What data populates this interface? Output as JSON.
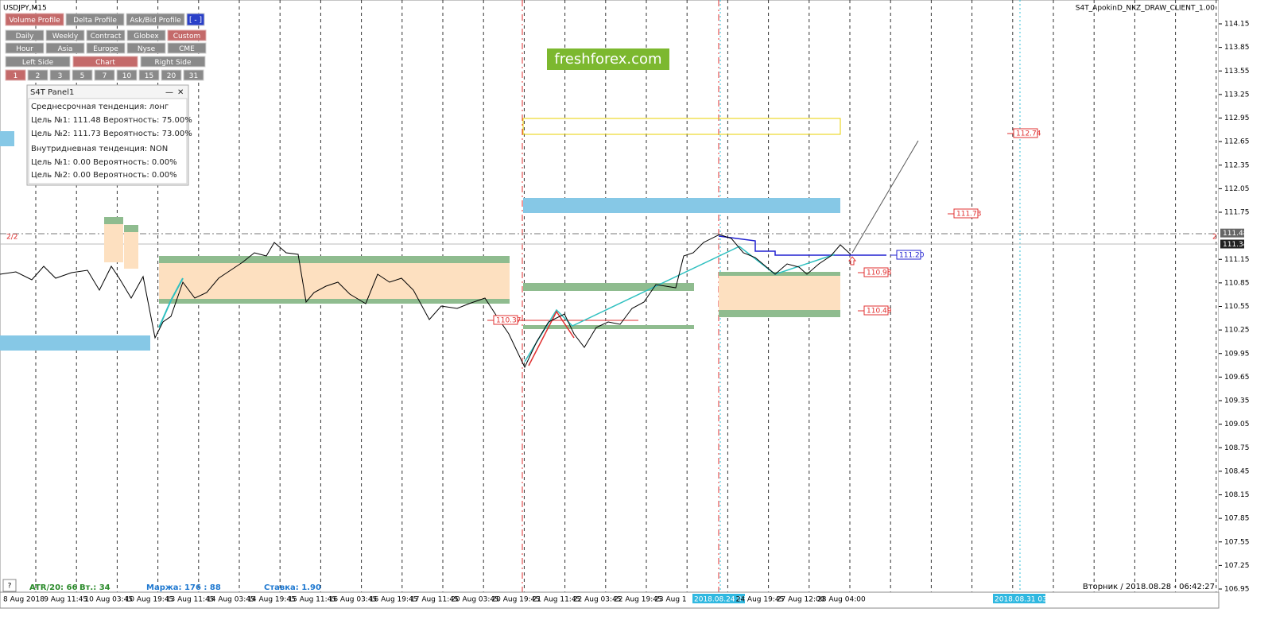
{
  "header": {
    "symbol": "USDJPY,M15",
    "indicator": "S4T_ApokinD_NKZ_DRAW_CLIENT_1.00"
  },
  "toolbar": {
    "profiles": [
      "Volume Profile",
      "Delta Profile",
      "Ask/Bid Profile"
    ],
    "toggle": "[ - ]",
    "periods": [
      "Daily",
      "Weekly",
      "Contract",
      "Globex",
      "Custom"
    ],
    "sessions": [
      "Hour",
      "Asia",
      "Europe",
      "Nyse",
      "CME"
    ],
    "sides": [
      "Left Side",
      "Chart",
      "Right Side"
    ],
    "numbers": [
      "1",
      "2",
      "3",
      "5",
      "7",
      "10",
      "15",
      "20",
      "31"
    ]
  },
  "panel": {
    "title": "S4T Panel1",
    "lines": [
      "Среднесрочная тенденция: лонг",
      "Цель №1: 111.48 Вероятность: 75.00%",
      "Цель №2: 111.73 Вероятность: 73.00%",
      "Внутридневная тенденция: NON",
      "Цель №1: 0.00 Вероятность: 0.00%",
      "Цель №2: 0.00 Вероятность: 0.00%"
    ]
  },
  "watermark": "freshforex.com",
  "price_axis": {
    "ticks": [
      114.15,
      113.85,
      113.55,
      113.25,
      112.95,
      112.65,
      112.35,
      112.05,
      111.75,
      111.15,
      110.85,
      110.55,
      110.25,
      109.95,
      109.65,
      109.35,
      109.05,
      108.75,
      108.45,
      108.15,
      107.85,
      107.55,
      107.25,
      106.95
    ],
    "current": [
      111.48,
      111.34
    ]
  },
  "levels": [
    "112.74",
    "111.73",
    "111.20",
    "110.98",
    "110.49",
    "110.37"
  ],
  "markers": {
    "left": "2/2",
    "right": "2"
  },
  "time_axis": {
    "labels": [
      "8 Aug 2018",
      "9 Aug 11:45",
      "10 Aug 03:45",
      "10 Aug 19:45",
      "13 Aug 11:45",
      "14 Aug 03:45",
      "14 Aug 19:45",
      "15 Aug 11:45",
      "16 Aug 03:45",
      "16 Aug 19:45",
      "17 Aug 11:45",
      "20 Aug 03:45",
      "20 Aug 19:45",
      "21 Aug 11:45",
      "22 Aug 03:45",
      "22 Aug 19:45",
      "23 Aug 1",
      "2018.08.24 07:15",
      "24 Aug 19:45",
      "27 Aug 12:00",
      "28 Aug 04:00"
    ],
    "end": "2018.08.31 03:15"
  },
  "footer": {
    "atr": "ATR/20: 66",
    "vol": "Вт.: 34",
    "margin": "Маржа: 176 : 88",
    "rate": "Ставка: 1.90",
    "datetime": "Вторник / 2018.08.28 - 06:42:27"
  },
  "help": "?"
}
